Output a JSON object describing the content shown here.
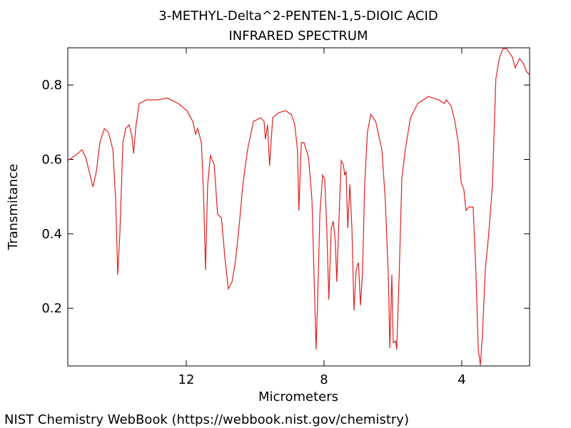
{
  "chart_data": {
    "type": "line",
    "title": "3-METHYL-Delta^2-PENTEN-1,5-DIOIC ACID",
    "subtitle": "INFRARED SPECTRUM",
    "x_label": "Micrometers",
    "y_label": "Transmitance",
    "footer": "NIST Chemistry WebBook (https://webbook.nist.gov/chemistry)",
    "xlim": [
      15.44,
      2.03
    ],
    "ylim": [
      0.045,
      0.9
    ],
    "xticks": [
      12,
      8,
      4
    ],
    "yticks": [
      0.2,
      0.4,
      0.6,
      0.8
    ],
    "grid": false,
    "x": [
      15.44,
      15.23,
      15.03,
      14.92,
      14.82,
      14.71,
      14.61,
      14.51,
      14.38,
      14.26,
      14.13,
      14.05,
      13.99,
      13.93,
      13.84,
      13.76,
      13.66,
      13.58,
      13.53,
      13.47,
      13.37,
      13.16,
      12.85,
      12.54,
      12.23,
      11.98,
      11.81,
      11.73,
      11.67,
      11.56,
      11.5,
      11.44,
      11.38,
      11.3,
      11.19,
      11.09,
      10.98,
      10.88,
      10.78,
      10.67,
      10.57,
      10.47,
      10.36,
      10.22,
      10.05,
      9.84,
      9.74,
      9.7,
      9.64,
      9.58,
      9.49,
      9.33,
      9.12,
      8.95,
      8.85,
      8.77,
      8.73,
      8.66,
      8.58,
      8.45,
      8.35,
      8.27,
      8.23,
      8.19,
      8.12,
      8.04,
      7.98,
      7.92,
      7.86,
      7.79,
      7.73,
      7.67,
      7.63,
      7.56,
      7.5,
      7.44,
      7.4,
      7.36,
      7.31,
      7.25,
      7.19,
      7.13,
      7.07,
      7.0,
      6.94,
      6.88,
      6.82,
      6.74,
      6.64,
      6.5,
      6.32,
      6.22,
      6.13,
      6.09,
      6.03,
      5.99,
      5.92,
      5.89,
      5.82,
      5.74,
      5.64,
      5.49,
      5.28,
      4.97,
      4.66,
      4.51,
      4.45,
      4.31,
      4.2,
      4.1,
      4.02,
      3.94,
      3.88,
      3.79,
      3.67,
      3.59,
      3.52,
      3.46,
      3.4,
      3.32,
      3.22,
      3.11,
      3.01,
      2.9,
      2.8,
      2.7,
      2.53,
      2.45,
      2.32,
      2.2,
      2.12,
      2.03
    ],
    "series": [
      {
        "name": "spectrum",
        "color": "#e02020",
        "values": [
          0.597,
          0.61,
          0.626,
          0.606,
          0.568,
          0.526,
          0.568,
          0.645,
          0.683,
          0.673,
          0.626,
          0.491,
          0.29,
          0.396,
          0.645,
          0.683,
          0.693,
          0.664,
          0.616,
          0.683,
          0.75,
          0.76,
          0.76,
          0.765,
          0.75,
          0.731,
          0.702,
          0.668,
          0.683,
          0.645,
          0.511,
          0.303,
          0.53,
          0.61,
          0.587,
          0.453,
          0.443,
          0.338,
          0.252,
          0.271,
          0.328,
          0.415,
          0.53,
          0.626,
          0.702,
          0.712,
          0.702,
          0.654,
          0.693,
          0.583,
          0.712,
          0.725,
          0.731,
          0.721,
          0.693,
          0.626,
          0.463,
          0.645,
          0.645,
          0.606,
          0.491,
          0.223,
          0.089,
          0.204,
          0.453,
          0.558,
          0.548,
          0.415,
          0.223,
          0.415,
          0.434,
          0.376,
          0.271,
          0.453,
          0.597,
          0.587,
          0.558,
          0.568,
          0.415,
          0.533,
          0.415,
          0.194,
          0.3,
          0.323,
          0.208,
          0.3,
          0.53,
          0.673,
          0.721,
          0.702,
          0.626,
          0.491,
          0.28,
          0.093,
          0.29,
          0.108,
          0.112,
          0.089,
          0.28,
          0.549,
          0.626,
          0.712,
          0.75,
          0.769,
          0.76,
          0.75,
          0.76,
          0.744,
          0.702,
          0.645,
          0.539,
          0.52,
          0.463,
          0.472,
          0.472,
          0.3,
          0.089,
          0.047,
          0.127,
          0.3,
          0.396,
          0.53,
          0.817,
          0.875,
          0.898,
          0.898,
          0.875,
          0.846,
          0.871,
          0.856,
          0.836,
          0.827
        ]
      }
    ]
  }
}
